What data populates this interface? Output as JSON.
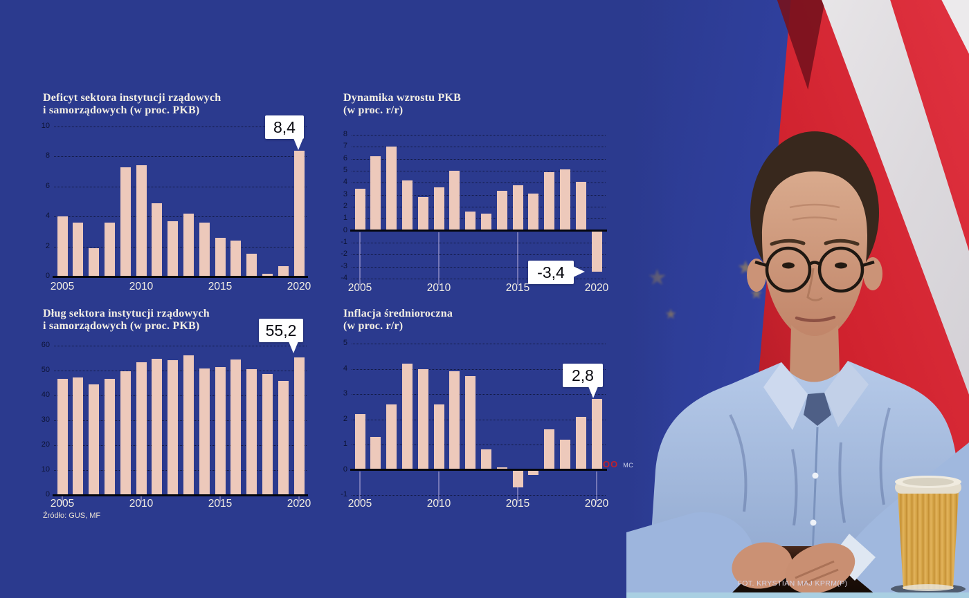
{
  "colors": {
    "background": "#2b3a8e",
    "bar": "#edc9bb",
    "axis": "#04060e",
    "grid_dots": "#0e1437",
    "ytick_text": "#0d1334",
    "xtick_text": "#f3eee3",
    "title_text": "#f3eee3",
    "callout_bg": "#ffffff",
    "callout_text": "#0a0a10",
    "eu_flag_blue": "#3a49af",
    "flag_red": "#d0222e",
    "flag_white": "#f0eef0",
    "shirt_blue": "#a9c0e3",
    "cup_tan": "#d8a544",
    "bottom_strip": "#a9cfe2",
    "watermark_red": "#c0202c"
  },
  "source_note": "Źródło: GUS, MF",
  "watermark": {
    "mark": "OO",
    "initials": "MC"
  },
  "photo": {
    "credit": "FOT. KRYSTIAN MAJ KPRM(P)"
  },
  "chart_data": [
    {
      "id": "deficyt",
      "type": "bar",
      "title_line1": "Deficyt sektora instytucji rządowych",
      "title_line2": "i samorządowych (w proc. PKB)",
      "categories": [
        2005,
        2006,
        2007,
        2008,
        2009,
        2010,
        2011,
        2012,
        2013,
        2014,
        2015,
        2016,
        2017,
        2018,
        2019,
        2020
      ],
      "values": [
        4.0,
        3.6,
        1.9,
        3.6,
        7.3,
        7.4,
        4.9,
        3.7,
        4.2,
        3.6,
        2.6,
        2.4,
        1.5,
        0.2,
        0.7,
        8.4
      ],
      "ylim": [
        0,
        10
      ],
      "yticks": [
        0,
        2,
        4,
        6,
        8,
        10
      ],
      "xticks": [
        2005,
        2010,
        2015,
        2020
      ],
      "grid": true,
      "callout": {
        "label": "8,4",
        "category": 2020
      }
    },
    {
      "id": "pkb",
      "type": "bar",
      "title_line1": "Dynamika wzrostu PKB",
      "title_line2": "(w proc. r/r)",
      "categories": [
        2005,
        2006,
        2007,
        2008,
        2009,
        2010,
        2011,
        2012,
        2013,
        2014,
        2015,
        2016,
        2017,
        2018,
        2019,
        2020
      ],
      "values": [
        3.5,
        6.2,
        7.0,
        4.2,
        2.8,
        3.6,
        5.0,
        1.6,
        1.4,
        3.3,
        3.8,
        3.1,
        4.9,
        5.1,
        4.1,
        -3.4
      ],
      "ylim": [
        -4,
        8
      ],
      "yticks": [
        8,
        7,
        6,
        5,
        4,
        3,
        2,
        1,
        0,
        -1,
        -2,
        -3,
        -4
      ],
      "xticks": [
        2005,
        2010,
        2015,
        2020
      ],
      "grid": true,
      "callout": {
        "label": "-3,4",
        "category": 2020
      }
    },
    {
      "id": "dlug",
      "type": "bar",
      "title_line1": "Dług sektora instytucji rządowych",
      "title_line2": "i samorządowych (w proc. PKB)",
      "categories": [
        2005,
        2006,
        2007,
        2008,
        2009,
        2010,
        2011,
        2012,
        2013,
        2014,
        2015,
        2016,
        2017,
        2018,
        2019,
        2020
      ],
      "values": [
        46.7,
        47.3,
        44.4,
        46.7,
        49.8,
        53.4,
        54.6,
        54.1,
        56.1,
        50.8,
        51.3,
        54.4,
        50.5,
        48.7,
        45.9,
        55.2
      ],
      "ylim": [
        0,
        60
      ],
      "yticks": [
        0,
        10,
        20,
        30,
        40,
        50,
        60
      ],
      "xticks": [
        2005,
        2010,
        2015,
        2020
      ],
      "grid": true,
      "callout": {
        "label": "55,2",
        "category": 2020
      }
    },
    {
      "id": "inflacja",
      "type": "bar",
      "title_line1": "Inflacja średnioroczna",
      "title_line2": "(w proc. r/r)",
      "categories": [
        2005,
        2006,
        2007,
        2008,
        2009,
        2010,
        2011,
        2012,
        2013,
        2014,
        2015,
        2016,
        2017,
        2018,
        2019,
        2020
      ],
      "values": [
        2.2,
        1.3,
        2.6,
        4.2,
        4.0,
        2.6,
        3.9,
        3.7,
        0.8,
        0.1,
        -0.7,
        -0.2,
        1.6,
        1.2,
        2.1,
        2.8
      ],
      "ylim": [
        -1,
        5
      ],
      "yticks": [
        5,
        4,
        3,
        2,
        1,
        0,
        -1
      ],
      "xticks": [
        2005,
        2010,
        2015,
        2020
      ],
      "grid": true,
      "callout": {
        "label": "2,8",
        "category": 2020
      }
    }
  ]
}
